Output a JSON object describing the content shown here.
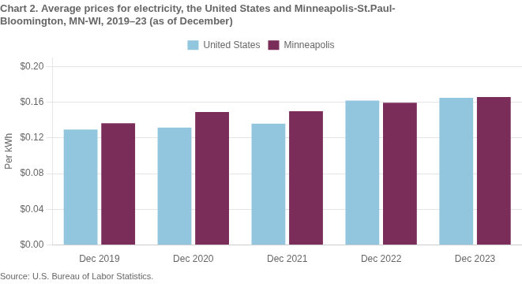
{
  "chart_data": {
    "type": "bar",
    "title": [
      "Chart 2. Average prices for electricity, the United States and Minneapolis-St.Paul-",
      "Bloomington, MN-WI, 2019–23 (as of December)"
    ],
    "ylabel": "Per kWh",
    "annotations": [
      "Source: U.S. Bureau of Labor Statistics."
    ],
    "categories": [
      "Dec 2019",
      "Dec 2020",
      "Dec 2021",
      "Dec 2022",
      "Dec 2023"
    ],
    "series": [
      {
        "name": "United States",
        "color": "#92C5DE",
        "values": [
          0.1295,
          0.1315,
          0.136,
          0.162,
          0.165
        ]
      },
      {
        "name": "Minneapolis",
        "color": "#7B2D5A",
        "values": [
          0.1365,
          0.149,
          0.15,
          0.1595,
          0.166
        ]
      }
    ],
    "ylim": [
      0,
      0.21
    ],
    "yticks": [
      {
        "value": 0.0,
        "label": "$0.00"
      },
      {
        "value": 0.04,
        "label": "$0.04"
      },
      {
        "value": 0.08,
        "label": "$0.08"
      },
      {
        "value": 0.12,
        "label": "$0.12"
      },
      {
        "value": 0.16,
        "label": "$0.16"
      },
      {
        "value": 0.2,
        "label": "$0.20"
      }
    ],
    "grid": true,
    "legend": "top"
  }
}
